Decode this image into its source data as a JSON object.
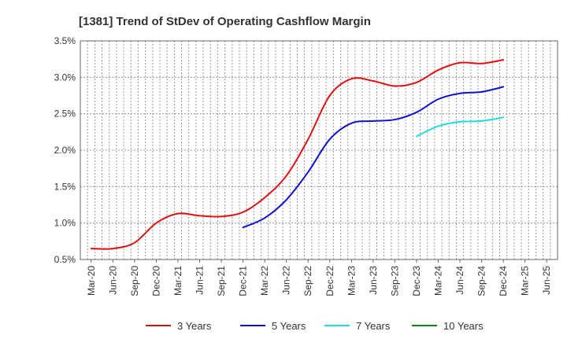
{
  "chart_data": {
    "type": "line",
    "title": "[1381]  Trend of StDev of Operating Cashflow Margin",
    "xlabel": "",
    "ylabel": "",
    "ylim": [
      0.5,
      3.5
    ],
    "yticks": [
      "0.5%",
      "1.0%",
      "1.5%",
      "2.0%",
      "2.5%",
      "3.0%",
      "3.5%"
    ],
    "ytick_values": [
      0.5,
      1.0,
      1.5,
      2.0,
      2.5,
      3.0,
      3.5
    ],
    "categories": [
      "Mar-20",
      "Jun-20",
      "Sep-20",
      "Dec-20",
      "Mar-21",
      "Jun-21",
      "Sep-21",
      "Dec-21",
      "Mar-22",
      "Jun-22",
      "Sep-22",
      "Dec-22",
      "Mar-23",
      "Jun-23",
      "Sep-23",
      "Dec-23",
      "Mar-24",
      "Jun-24",
      "Sep-24",
      "Dec-24",
      "Mar-25",
      "Jun-25"
    ],
    "grid": true,
    "legend_position": "bottom",
    "series": [
      {
        "name": "3 Years",
        "color": "#dd1111",
        "values": [
          0.65,
          0.65,
          0.73,
          1.0,
          1.13,
          1.1,
          1.09,
          1.15,
          1.35,
          1.65,
          2.15,
          2.75,
          2.98,
          2.95,
          2.88,
          2.93,
          3.1,
          3.2,
          3.19,
          3.24,
          null,
          null
        ]
      },
      {
        "name": "5 Years",
        "color": "#1111cc",
        "values": [
          null,
          null,
          null,
          null,
          null,
          null,
          null,
          0.94,
          1.07,
          1.32,
          1.7,
          2.15,
          2.37,
          2.4,
          2.42,
          2.52,
          2.7,
          2.78,
          2.8,
          2.87,
          null,
          null
        ]
      },
      {
        "name": "7 Years",
        "color": "#22dddd",
        "values": [
          null,
          null,
          null,
          null,
          null,
          null,
          null,
          null,
          null,
          null,
          null,
          null,
          null,
          null,
          null,
          2.19,
          2.33,
          2.39,
          2.4,
          2.45,
          null,
          null
        ]
      },
      {
        "name": "10 Years",
        "color": "#118811",
        "values": [
          null,
          null,
          null,
          null,
          null,
          null,
          null,
          null,
          null,
          null,
          null,
          null,
          null,
          null,
          null,
          null,
          null,
          null,
          null,
          null,
          null,
          null
        ]
      }
    ]
  }
}
